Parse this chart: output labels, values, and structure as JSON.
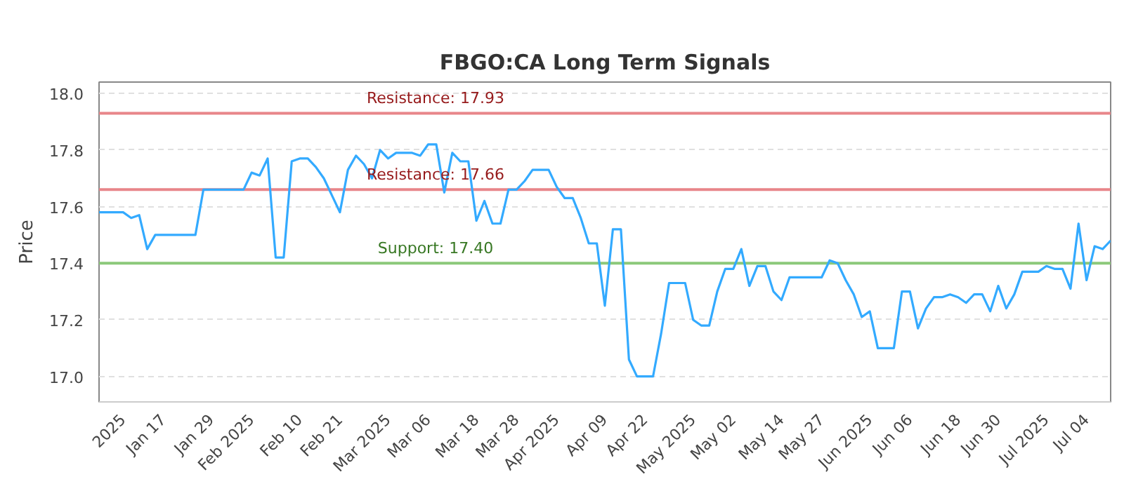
{
  "chart_data": {
    "type": "line",
    "title": "FBGO:CA Long Term Signals",
    "ylabel": "Price",
    "categories": [
      null,
      null,
      null,
      "2025",
      null,
      null,
      null,
      null,
      "Jan 17",
      null,
      null,
      null,
      null,
      null,
      "Jan 29",
      null,
      null,
      null,
      null,
      "Feb 2025",
      null,
      null,
      null,
      null,
      null,
      "Feb 10",
      null,
      null,
      null,
      null,
      "Feb 21",
      null,
      null,
      null,
      null,
      null,
      "Mar 2025",
      null,
      null,
      null,
      null,
      "Mar 06",
      null,
      null,
      null,
      null,
      null,
      "Mar 18",
      null,
      null,
      null,
      null,
      "Mar 28",
      null,
      null,
      null,
      null,
      "Apr 2025",
      null,
      null,
      null,
      null,
      null,
      "Apr 09",
      null,
      null,
      null,
      null,
      "Apr 22",
      null,
      null,
      null,
      null,
      null,
      "May 2025",
      null,
      null,
      null,
      null,
      "May 02",
      null,
      null,
      null,
      null,
      null,
      "May 14",
      null,
      null,
      null,
      null,
      "May 27",
      null,
      null,
      null,
      null,
      null,
      "Jun 2025",
      null,
      null,
      null,
      null,
      "Jun 06",
      null,
      null,
      null,
      null,
      null,
      "Jun 18",
      null,
      null,
      null,
      null,
      "Jun 30",
      null,
      null,
      null,
      null,
      null,
      "Jul 2025",
      null,
      null,
      null,
      null,
      "Jul 04",
      null,
      null,
      null
    ],
    "series": [
      {
        "color": "#33aaff",
        "values": [
          17.58,
          17.58,
          17.58,
          17.58,
          17.56,
          17.57,
          17.45,
          17.5,
          17.5,
          17.5,
          17.5,
          17.5,
          17.5,
          17.66,
          17.66,
          17.66,
          17.66,
          17.66,
          17.66,
          17.72,
          17.71,
          17.77,
          17.42,
          17.42,
          17.76,
          17.77,
          17.77,
          17.74,
          17.7,
          17.64,
          17.58,
          17.73,
          17.78,
          17.75,
          17.7,
          17.8,
          17.77,
          17.79,
          17.79,
          17.79,
          17.78,
          17.82,
          17.82,
          17.65,
          17.79,
          17.76,
          17.76,
          17.55,
          17.62,
          17.54,
          17.54,
          17.66,
          17.66,
          17.69,
          17.73,
          17.73,
          17.73,
          17.67,
          17.63,
          17.63,
          17.56,
          17.47,
          17.47,
          17.25,
          17.52,
          17.52,
          17.06,
          17.0,
          17.0,
          17.0,
          17.15,
          17.33,
          17.33,
          17.33,
          17.2,
          17.18,
          17.18,
          17.3,
          17.38,
          17.38,
          17.45,
          17.32,
          17.39,
          17.39,
          17.3,
          17.27,
          17.35,
          17.35,
          17.35,
          17.35,
          17.35,
          17.41,
          17.4,
          17.34,
          17.29,
          17.21,
          17.23,
          17.1,
          17.1,
          17.1,
          17.3,
          17.3,
          17.17,
          17.24,
          17.28,
          17.28,
          17.29,
          17.28,
          17.26,
          17.29,
          17.29,
          17.23,
          17.32,
          17.24,
          17.29,
          17.37,
          17.37,
          17.37,
          17.39,
          17.38,
          17.38,
          17.31,
          17.54,
          17.34,
          17.46,
          17.45,
          17.48
        ]
      }
    ],
    "ylim": [
      16.91,
      18.04
    ],
    "yticks": [
      {
        "value": 17.0,
        "label": "17.0"
      },
      {
        "value": 17.2,
        "label": "17.2"
      },
      {
        "value": 17.4,
        "label": "17.4"
      },
      {
        "value": 17.6,
        "label": "17.6"
      },
      {
        "value": 17.8,
        "label": "17.8"
      },
      {
        "value": 18.0,
        "label": "18.0"
      }
    ],
    "ref_lines": [
      {
        "axis": "y",
        "value": 17.93,
        "label": "Resistance: 17.93",
        "color": "#e8868a"
      },
      {
        "axis": "y",
        "value": 17.66,
        "label": "Resistance: 17.66",
        "color": "#e8868a"
      },
      {
        "axis": "y",
        "value": 17.4,
        "label": "Support: 17.40",
        "color": "#8cc97a"
      }
    ],
    "grid": "y",
    "marker": "none",
    "line_style": "solid"
  }
}
